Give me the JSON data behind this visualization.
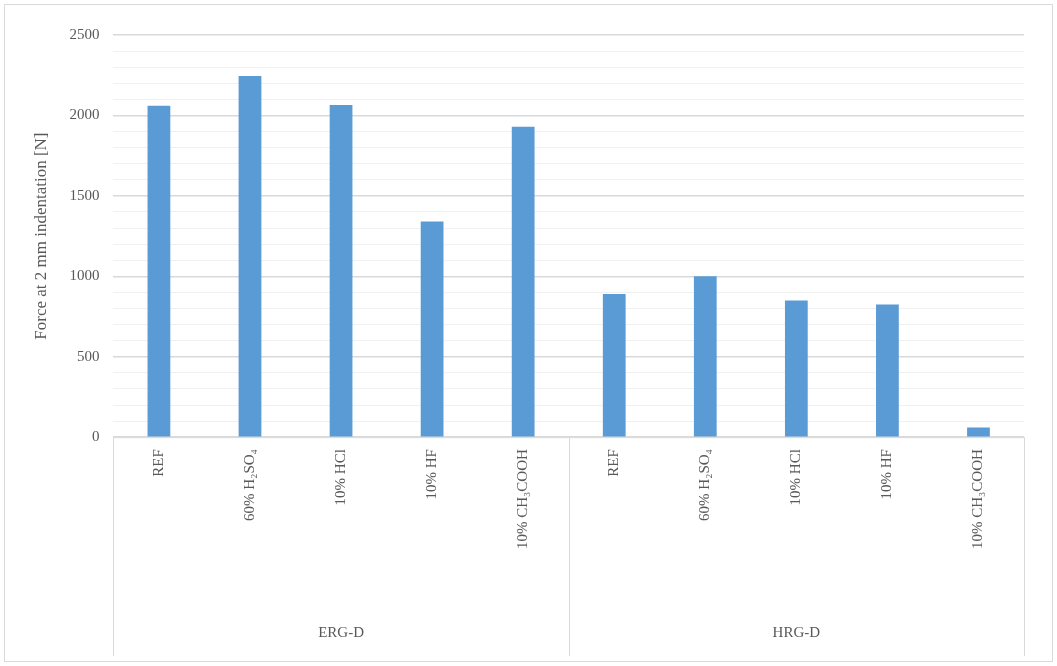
{
  "chart_data": {
    "type": "bar",
    "ylabel": "Force at 2 mm indentation [N]",
    "categories": [
      "REF",
      "60% H₂SO₄",
      "10% HCl",
      "10% HF",
      "10% CH₃COOH",
      "REF",
      "60% H₂SO₄",
      "10% HCl",
      "10% HF",
      "10% CH₃COOH"
    ],
    "values": [
      2060,
      2245,
      2065,
      1340,
      1930,
      890,
      1000,
      850,
      825,
      60
    ],
    "color": "#5b9bd5",
    "ylim": [
      0,
      2500
    ],
    "yticks": [
      0,
      {
        "value": 100,
        "label": null
      },
      {
        "value": 200,
        "label": null
      },
      {
        "value": 300,
        "label": null
      },
      {
        "value": 400,
        "label": null
      },
      500,
      {
        "value": 600,
        "label": null
      },
      {
        "value": 700,
        "label": null
      },
      {
        "value": 800,
        "label": null
      },
      {
        "value": 900,
        "label": null
      },
      1000,
      {
        "value": 1100,
        "label": null
      },
      {
        "value": 1200,
        "label": null
      },
      {
        "value": 1300,
        "label": null
      },
      {
        "value": 1400,
        "label": null
      },
      1500,
      {
        "value": 1600,
        "label": null
      },
      {
        "value": 1700,
        "label": null
      },
      {
        "value": 1800,
        "label": null
      },
      {
        "value": 1900,
        "label": null
      },
      2000,
      {
        "value": 2100,
        "label": null
      },
      {
        "value": 2200,
        "label": null
      },
      {
        "value": 2300,
        "label": null
      },
      {
        "value": 2400,
        "label": null
      },
      2500
    ],
    "grid": "y",
    "legend": false,
    "annotations": [
      "ERG-D",
      "HRG-D"
    ]
  }
}
